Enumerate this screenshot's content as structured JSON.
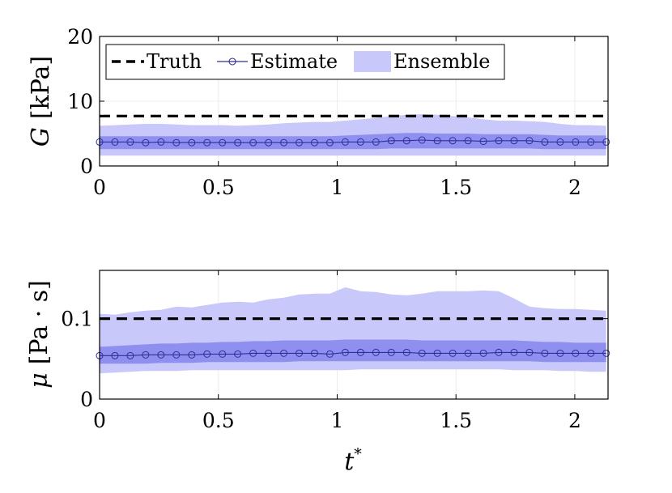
{
  "colors": {
    "band_outer": "#c8c8fb",
    "band_inner": "#8f8ff0",
    "estimate": "#2f2f9a",
    "truth": "#000000",
    "grid": "#ececec"
  },
  "legend": {
    "truth": "Truth",
    "estimate": "Estimate",
    "ensemble": "Ensemble"
  },
  "chart_data": [
    {
      "type": "line",
      "title": "",
      "xlabel": "",
      "ylabel_var": "G",
      "ylabel_unit": "[kPa]",
      "xlim": [
        0,
        2.14
      ],
      "ylim": [
        0,
        20
      ],
      "xticks": [
        0,
        0.5,
        1,
        1.5,
        2
      ],
      "xtick_labels": [
        "0",
        "0.5",
        "1",
        "1.5",
        "2"
      ],
      "yticks": [
        0,
        10,
        20
      ],
      "ytick_labels": [
        "0",
        "10",
        "20"
      ],
      "grid": true,
      "legend_position": "top-left",
      "truth": 7.7,
      "x": [
        0,
        0.0646,
        0.1292,
        0.1938,
        0.2585,
        0.3231,
        0.3877,
        0.4523,
        0.5169,
        0.5815,
        0.6462,
        0.7108,
        0.7754,
        0.84,
        0.9046,
        0.9692,
        1.0338,
        1.0985,
        1.1631,
        1.2277,
        1.2923,
        1.3569,
        1.4215,
        1.4862,
        1.5508,
        1.6154,
        1.68,
        1.7446,
        1.8092,
        1.8738,
        1.9385,
        2.0031,
        2.0677,
        2.1323
      ],
      "series": [
        {
          "name": "Estimate",
          "values": [
            3.7,
            3.7,
            3.7,
            3.6,
            3.7,
            3.6,
            3.6,
            3.6,
            3.6,
            3.6,
            3.6,
            3.6,
            3.6,
            3.6,
            3.6,
            3.6,
            3.7,
            3.7,
            3.7,
            3.9,
            3.9,
            4.0,
            3.9,
            3.9,
            3.9,
            3.8,
            3.9,
            3.9,
            3.9,
            3.7,
            3.7,
            3.7,
            3.7,
            3.7
          ]
        },
        {
          "name": "Ensemble outer upper",
          "values": [
            6.2,
            6.3,
            6.4,
            6.5,
            6.5,
            6.4,
            6.3,
            6.3,
            6.3,
            6.2,
            6.3,
            6.4,
            6.6,
            6.7,
            6.8,
            6.8,
            7.0,
            7.2,
            7.4,
            7.7,
            7.9,
            8.0,
            7.9,
            7.7,
            7.5,
            7.2,
            7.0,
            7.0,
            6.9,
            6.8,
            6.5,
            6.3,
            6.3,
            6.2
          ]
        },
        {
          "name": "Ensemble outer lower",
          "values": [
            1.6,
            1.6,
            1.6,
            1.6,
            1.6,
            1.6,
            1.6,
            1.6,
            1.6,
            1.6,
            1.6,
            1.6,
            1.6,
            1.6,
            1.6,
            1.6,
            1.6,
            1.6,
            1.6,
            1.6,
            1.6,
            1.6,
            1.6,
            1.6,
            1.6,
            1.6,
            1.6,
            1.6,
            1.6,
            1.6,
            1.6,
            1.6,
            1.6,
            1.6
          ]
        },
        {
          "name": "Ensemble inner upper",
          "values": [
            4.6,
            4.6,
            4.6,
            4.6,
            4.6,
            4.6,
            4.6,
            4.6,
            4.6,
            4.6,
            4.6,
            4.6,
            4.6,
            4.6,
            4.6,
            4.6,
            4.7,
            4.8,
            4.9,
            5.0,
            5.1,
            5.1,
            5.0,
            5.0,
            5.0,
            4.9,
            4.9,
            4.9,
            4.9,
            4.8,
            4.7,
            4.7,
            4.7,
            4.7
          ]
        },
        {
          "name": "Ensemble inner lower",
          "values": [
            2.6,
            2.6,
            2.6,
            2.6,
            2.6,
            2.6,
            2.6,
            2.6,
            2.6,
            2.6,
            2.6,
            2.6,
            2.6,
            2.6,
            2.6,
            2.6,
            2.6,
            2.6,
            2.6,
            2.7,
            2.7,
            2.7,
            2.7,
            2.7,
            2.7,
            2.7,
            2.7,
            2.7,
            2.7,
            2.6,
            2.6,
            2.6,
            2.6,
            2.6
          ]
        }
      ]
    },
    {
      "type": "line",
      "title": "",
      "xlabel_var": "t",
      "xlabel_sup": "*",
      "ylabel_var": "μ",
      "ylabel_unit": "[Pa · s]",
      "xlim": [
        0,
        2.14
      ],
      "ylim": [
        0,
        0.16
      ],
      "xticks": [
        0,
        0.5,
        1,
        1.5,
        2
      ],
      "xtick_labels": [
        "0",
        "0.5",
        "1",
        "1.5",
        "2"
      ],
      "yticks": [
        0,
        0.1
      ],
      "ytick_labels": [
        "0",
        "0.1"
      ],
      "grid": true,
      "truth": 0.1,
      "x": [
        0,
        0.0646,
        0.1292,
        0.1938,
        0.2585,
        0.3231,
        0.3877,
        0.4523,
        0.5169,
        0.5815,
        0.6462,
        0.7108,
        0.7754,
        0.84,
        0.9046,
        0.9692,
        1.0338,
        1.0985,
        1.1631,
        1.2277,
        1.2923,
        1.3569,
        1.4215,
        1.4862,
        1.5508,
        1.6154,
        1.68,
        1.7446,
        1.8092,
        1.8738,
        1.9385,
        2.0031,
        2.0677,
        2.1323
      ],
      "series": [
        {
          "name": "Estimate",
          "values": [
            0.054,
            0.054,
            0.054,
            0.055,
            0.055,
            0.055,
            0.055,
            0.056,
            0.056,
            0.056,
            0.057,
            0.057,
            0.057,
            0.057,
            0.057,
            0.056,
            0.058,
            0.058,
            0.058,
            0.058,
            0.058,
            0.057,
            0.057,
            0.057,
            0.057,
            0.057,
            0.058,
            0.058,
            0.058,
            0.057,
            0.057,
            0.057,
            0.057,
            0.057
          ]
        },
        {
          "name": "Ensemble outer upper",
          "values": [
            0.106,
            0.105,
            0.108,
            0.11,
            0.111,
            0.115,
            0.114,
            0.117,
            0.12,
            0.121,
            0.12,
            0.124,
            0.126,
            0.13,
            0.131,
            0.131,
            0.139,
            0.134,
            0.133,
            0.13,
            0.129,
            0.131,
            0.134,
            0.134,
            0.134,
            0.135,
            0.134,
            0.125,
            0.115,
            0.113,
            0.112,
            0.112,
            0.111,
            0.11
          ]
        },
        {
          "name": "Ensemble outer lower",
          "values": [
            0.032,
            0.033,
            0.034,
            0.035,
            0.035,
            0.035,
            0.036,
            0.036,
            0.036,
            0.036,
            0.036,
            0.036,
            0.036,
            0.036,
            0.036,
            0.036,
            0.036,
            0.037,
            0.037,
            0.037,
            0.037,
            0.037,
            0.037,
            0.037,
            0.037,
            0.037,
            0.037,
            0.036,
            0.036,
            0.036,
            0.035,
            0.035,
            0.034,
            0.034
          ]
        },
        {
          "name": "Ensemble inner upper",
          "values": [
            0.065,
            0.066,
            0.067,
            0.068,
            0.069,
            0.069,
            0.07,
            0.07,
            0.071,
            0.071,
            0.072,
            0.072,
            0.073,
            0.073,
            0.073,
            0.073,
            0.074,
            0.074,
            0.074,
            0.074,
            0.074,
            0.073,
            0.073,
            0.073,
            0.073,
            0.073,
            0.073,
            0.073,
            0.072,
            0.071,
            0.071,
            0.07,
            0.07,
            0.07
          ]
        },
        {
          "name": "Ensemble inner lower",
          "values": [
            0.044,
            0.044,
            0.044,
            0.044,
            0.045,
            0.045,
            0.045,
            0.046,
            0.046,
            0.046,
            0.046,
            0.046,
            0.046,
            0.047,
            0.047,
            0.047,
            0.047,
            0.047,
            0.047,
            0.047,
            0.047,
            0.047,
            0.047,
            0.047,
            0.047,
            0.047,
            0.047,
            0.047,
            0.047,
            0.046,
            0.046,
            0.046,
            0.046,
            0.046
          ]
        }
      ]
    }
  ]
}
